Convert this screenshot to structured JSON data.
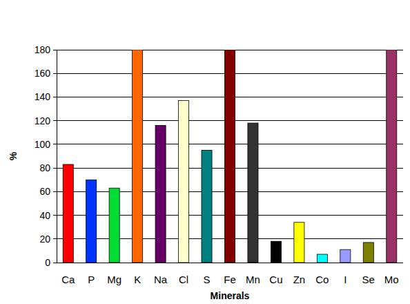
{
  "chart_data": {
    "type": "bar",
    "x_label": "Minerals",
    "y_label": "%",
    "categories": [
      "Ca",
      "P",
      "Mg",
      "K",
      "Na",
      "Cl",
      "S",
      "Fe",
      "Mn",
      "Cu",
      "Zn",
      "Co",
      "I",
      "Se",
      "Mo"
    ],
    "values": [
      83,
      70,
      63,
      180,
      116,
      137,
      95,
      180,
      118,
      18,
      34,
      7,
      11,
      17,
      180
    ],
    "colors": [
      "#ff0000",
      "#0033ff",
      "#00dd33",
      "#ff6600",
      "#660066",
      "#ffffcc",
      "#008080",
      "#800000",
      "#333333",
      "#000000",
      "#ffff00",
      "#00ffff",
      "#9999ff",
      "#808000",
      "#993366"
    ],
    "ylim": [
      0,
      180
    ],
    "yticks": [
      0,
      20,
      40,
      60,
      80,
      100,
      120,
      140,
      160,
      180
    ],
    "grid": true
  }
}
